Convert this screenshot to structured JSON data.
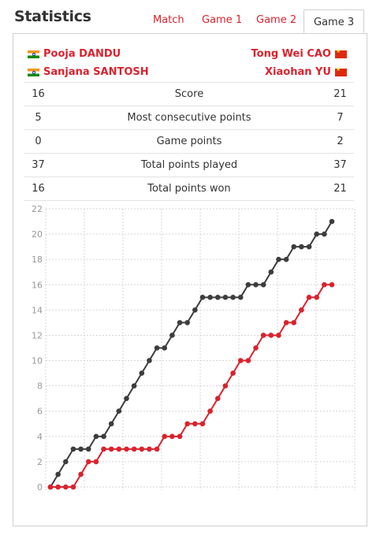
{
  "header": {
    "title": "Statistics"
  },
  "tabs": [
    {
      "label": "Match",
      "active": false
    },
    {
      "label": "Game 1",
      "active": false
    },
    {
      "label": "Game 2",
      "active": false
    },
    {
      "label": "Game 3",
      "active": true
    }
  ],
  "players": {
    "left": [
      {
        "name": "Pooja DANDU",
        "flag": "india-flag-icon"
      },
      {
        "name": "Sanjana SANTOSH",
        "flag": "india-flag-icon"
      }
    ],
    "right": [
      {
        "name": "Tong Wei CAO",
        "flag": "china-flag-icon"
      },
      {
        "name": "Xiaohan YU",
        "flag": "china-flag-icon"
      }
    ]
  },
  "stats": [
    {
      "left": "16",
      "label": "Score",
      "right": "21"
    },
    {
      "left": "5",
      "label": "Most consecutive points",
      "right": "7"
    },
    {
      "left": "0",
      "label": "Game points",
      "right": "2"
    },
    {
      "left": "37",
      "label": "Total points played",
      "right": "37"
    },
    {
      "left": "16",
      "label": "Total points won",
      "right": "21"
    }
  ],
  "colors": {
    "accent": "#d9232e",
    "series_red": "#d9232e",
    "series_dark": "#3d3d3d"
  },
  "chart_data": {
    "type": "line",
    "x": [
      0,
      1,
      2,
      3,
      4,
      5,
      6,
      7,
      8,
      9,
      10,
      11,
      12,
      13,
      14,
      15,
      16,
      17,
      18,
      19,
      20,
      21,
      22,
      23,
      24,
      25,
      26,
      27,
      28,
      29,
      30,
      31,
      32,
      33,
      34,
      35,
      36,
      37
    ],
    "ylim": [
      0,
      22
    ],
    "yticks": [
      0,
      2,
      4,
      6,
      8,
      10,
      12,
      14,
      16,
      18,
      20,
      22
    ],
    "grid": true,
    "series": [
      {
        "color": "#3d3d3d",
        "values": [
          0,
          1,
          2,
          3,
          3,
          3,
          4,
          4,
          5,
          6,
          7,
          8,
          9,
          10,
          11,
          11,
          12,
          13,
          13,
          14,
          15,
          15,
          15,
          15,
          15,
          15,
          16,
          16,
          16,
          17,
          18,
          18,
          19,
          19,
          19,
          20,
          20,
          21
        ]
      },
      {
        "color": "#d9232e",
        "values": [
          0,
          0,
          0,
          0,
          1,
          2,
          2,
          3,
          3,
          3,
          3,
          3,
          3,
          3,
          3,
          4,
          4,
          4,
          5,
          5,
          5,
          6,
          7,
          8,
          9,
          10,
          10,
          11,
          12,
          12,
          12,
          13,
          13,
          14,
          15,
          15,
          16,
          16
        ]
      }
    ]
  }
}
